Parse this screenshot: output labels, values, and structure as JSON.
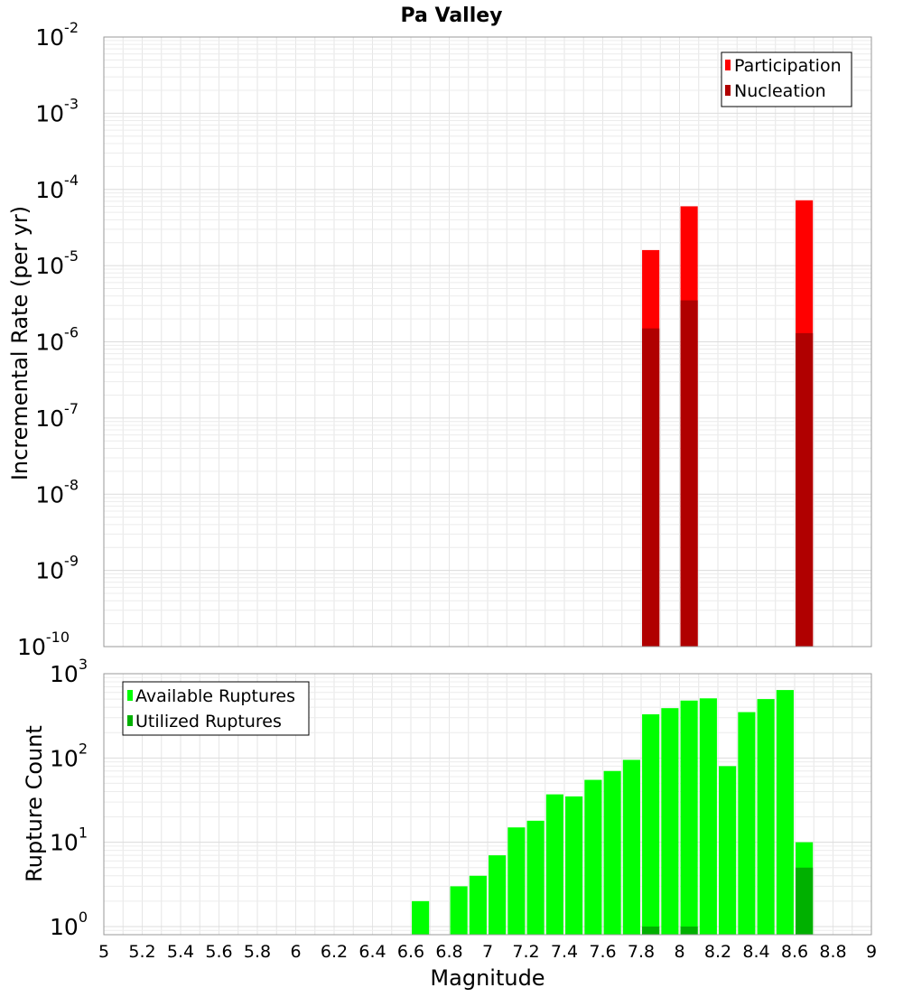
{
  "chart_data": [
    {
      "type": "bar",
      "title": "Pa Valley",
      "xlabel": "",
      "ylabel": "Incremental Rate (per yr)",
      "y_scale": "log",
      "ylim": [
        1e-10,
        0.01
      ],
      "xlim": [
        5,
        9
      ],
      "grid": true,
      "legend_position": "top-right",
      "bar_width": 0.09,
      "ytick_labels": [
        {
          "base": "10",
          "exp": "-10"
        },
        {
          "base": "10",
          "exp": "-9"
        },
        {
          "base": "10",
          "exp": "-8"
        },
        {
          "base": "10",
          "exp": "-7"
        },
        {
          "base": "10",
          "exp": "-6"
        },
        {
          "base": "10",
          "exp": "-5"
        },
        {
          "base": "10",
          "exp": "-4"
        },
        {
          "base": "10",
          "exp": "-3"
        },
        {
          "base": "10",
          "exp": "-2"
        }
      ],
      "series": [
        {
          "name": "Participation",
          "color": "#ff0000",
          "points": [
            {
              "x": 7.85,
              "y": 1.6e-05
            },
            {
              "x": 8.05,
              "y": 6e-05
            },
            {
              "x": 8.65,
              "y": 7.2e-05
            }
          ]
        },
        {
          "name": "Nucleation",
          "color": "#b00000",
          "points": [
            {
              "x": 7.85,
              "y": 1.5e-06
            },
            {
              "x": 8.05,
              "y": 3.5e-06
            },
            {
              "x": 8.65,
              "y": 1.3e-06
            }
          ]
        }
      ]
    },
    {
      "type": "bar",
      "title": "",
      "xlabel": "Magnitude",
      "ylabel": "Rupture Count",
      "y_scale": "log",
      "ylim": [
        0.8,
        1000
      ],
      "xlim": [
        5,
        9
      ],
      "grid": true,
      "legend_position": "top-left",
      "bar_width": 0.09,
      "xtick_labels": [
        "5",
        "5.2",
        "5.4",
        "5.6",
        "5.8",
        "6",
        "6.2",
        "6.4",
        "6.6",
        "6.8",
        "7",
        "7.2",
        "7.4",
        "7.6",
        "7.8",
        "8",
        "8.2",
        "8.4",
        "8.6",
        "8.8",
        "9"
      ],
      "ytick_labels": [
        {
          "base": "10",
          "exp": "0"
        },
        {
          "base": "10",
          "exp": "1"
        },
        {
          "base": "10",
          "exp": "2"
        },
        {
          "base": "10",
          "exp": "3"
        }
      ],
      "series": [
        {
          "name": "Available Ruptures",
          "color": "#00ff00",
          "points": [
            {
              "x": 6.65,
              "y": 2
            },
            {
              "x": 6.85,
              "y": 3
            },
            {
              "x": 6.95,
              "y": 4
            },
            {
              "x": 7.05,
              "y": 7
            },
            {
              "x": 7.15,
              "y": 15
            },
            {
              "x": 7.25,
              "y": 18
            },
            {
              "x": 7.35,
              "y": 37
            },
            {
              "x": 7.45,
              "y": 35
            },
            {
              "x": 7.55,
              "y": 55
            },
            {
              "x": 7.65,
              "y": 70
            },
            {
              "x": 7.75,
              "y": 95
            },
            {
              "x": 7.85,
              "y": 330
            },
            {
              "x": 7.95,
              "y": 390
            },
            {
              "x": 8.05,
              "y": 480
            },
            {
              "x": 8.15,
              "y": 510
            },
            {
              "x": 8.25,
              "y": 80
            },
            {
              "x": 8.35,
              "y": 350
            },
            {
              "x": 8.45,
              "y": 500
            },
            {
              "x": 8.55,
              "y": 640
            },
            {
              "x": 8.65,
              "y": 10
            }
          ]
        },
        {
          "name": "Utilized Ruptures",
          "color": "#00b000",
          "points": [
            {
              "x": 7.85,
              "y": 1
            },
            {
              "x": 8.05,
              "y": 1
            },
            {
              "x": 8.65,
              "y": 5
            }
          ]
        }
      ]
    }
  ]
}
